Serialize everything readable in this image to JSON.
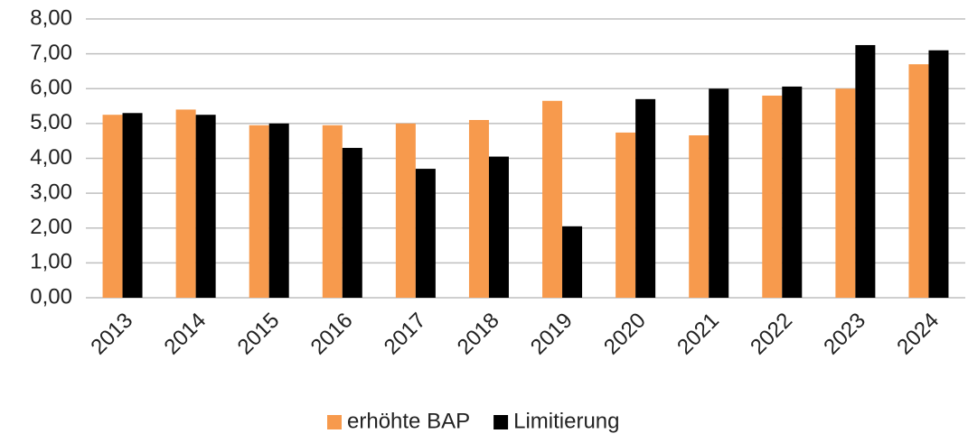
{
  "chart_data": {
    "type": "bar",
    "categories": [
      "2013",
      "2014",
      "2015",
      "2016",
      "2017",
      "2018",
      "2019",
      "2020",
      "2021",
      "2022",
      "2023",
      "2024"
    ],
    "series": [
      {
        "name": "erhöhte BAP",
        "color": "#f79a4d",
        "values": [
          5.25,
          5.4,
          4.95,
          4.95,
          5.0,
          5.1,
          5.65,
          4.74,
          4.66,
          5.8,
          6.0,
          6.7
        ]
      },
      {
        "name": "Limitierung",
        "color": "#000000",
        "values": [
          5.3,
          5.25,
          5.0,
          4.3,
          3.7,
          4.05,
          2.05,
          5.7,
          6.0,
          6.06,
          7.25,
          7.1
        ]
      }
    ],
    "ylim": [
      0,
      8
    ],
    "yticks": [
      {
        "value": 0,
        "label": "0,00"
      },
      {
        "value": 1,
        "label": "1,00"
      },
      {
        "value": 2,
        "label": "2,00"
      },
      {
        "value": 3,
        "label": "3,00"
      },
      {
        "value": 4,
        "label": "4,00"
      },
      {
        "value": 5,
        "label": "5,00"
      },
      {
        "value": 6,
        "label": "6,00"
      },
      {
        "value": 7,
        "label": "7,00"
      },
      {
        "value": 8,
        "label": "8,00"
      }
    ],
    "grid": true,
    "legend": "bottom"
  }
}
